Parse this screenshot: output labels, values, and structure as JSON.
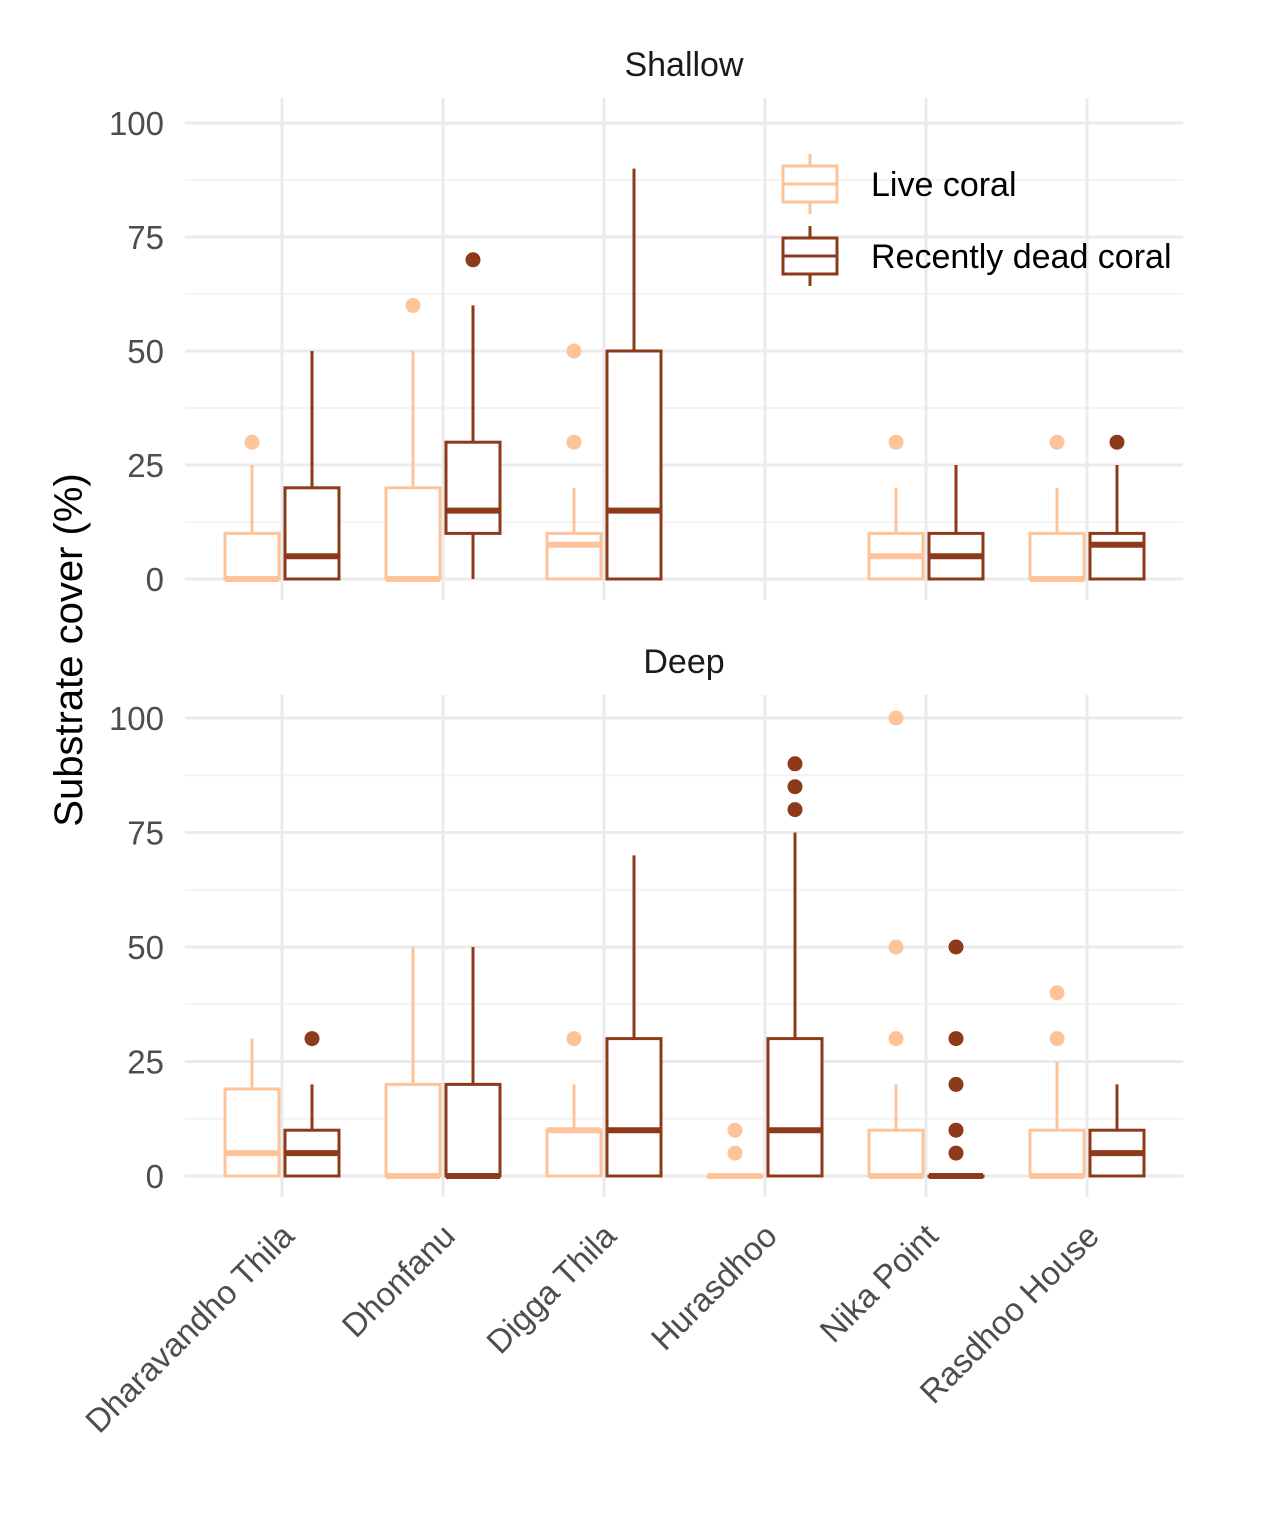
{
  "chart_data": {
    "type": "boxplot",
    "ylabel": "Substrate cover (%)",
    "xlabel": "",
    "ylim": [
      0,
      100
    ],
    "yticks": [
      0,
      25,
      50,
      75,
      100
    ],
    "categories": [
      "Dharavandho Thila",
      "Dhonfanu",
      "Digga Thila",
      "Hurasdhoo",
      "Nika Point",
      "Rasdhoo House"
    ],
    "legend": {
      "position": "top-right",
      "entries": [
        {
          "name": "Live coral",
          "color": "#fdc49a"
        },
        {
          "name": "Recently dead coral",
          "color": "#8c3a1a"
        }
      ]
    },
    "facets": [
      {
        "title": "Shallow",
        "series": [
          {
            "name": "Live coral",
            "boxes": [
              {
                "site": "Dharavandho Thila",
                "min": 0,
                "q1": 0,
                "median": 0,
                "q3": 10,
                "max": 25,
                "outliers": [
                  30
                ]
              },
              {
                "site": "Dhonfanu",
                "min": 0,
                "q1": 0,
                "median": 0,
                "q3": 20,
                "max": 50,
                "outliers": [
                  60
                ]
              },
              {
                "site": "Digga Thila",
                "min": 0,
                "q1": 0,
                "median": 7.5,
                "q3": 10,
                "max": 20,
                "outliers": [
                  30,
                  50
                ]
              },
              {
                "site": "Hurasdhoo",
                "missing": true
              },
              {
                "site": "Nika Point",
                "min": 0,
                "q1": 0,
                "median": 5,
                "q3": 10,
                "max": 20,
                "outliers": [
                  30
                ]
              },
              {
                "site": "Rasdhoo House",
                "min": 0,
                "q1": 0,
                "median": 0,
                "q3": 10,
                "max": 20,
                "outliers": [
                  30
                ]
              }
            ]
          },
          {
            "name": "Recently dead coral",
            "boxes": [
              {
                "site": "Dharavandho Thila",
                "min": 0,
                "q1": 0,
                "median": 5,
                "q3": 20,
                "max": 50,
                "outliers": []
              },
              {
                "site": "Dhonfanu",
                "min": 0,
                "q1": 10,
                "median": 15,
                "q3": 30,
                "max": 60,
                "outliers": [
                  70
                ]
              },
              {
                "site": "Digga Thila",
                "min": 0,
                "q1": 0,
                "median": 15,
                "q3": 50,
                "max": 90,
                "outliers": []
              },
              {
                "site": "Hurasdhoo",
                "missing": true
              },
              {
                "site": "Nika Point",
                "min": 0,
                "q1": 0,
                "median": 5,
                "q3": 10,
                "max": 25,
                "outliers": []
              },
              {
                "site": "Rasdhoo House",
                "min": 0,
                "q1": 0,
                "median": 7.5,
                "q3": 10,
                "max": 25,
                "outliers": [
                  30
                ]
              }
            ]
          }
        ]
      },
      {
        "title": "Deep",
        "series": [
          {
            "name": "Live coral",
            "boxes": [
              {
                "site": "Dharavandho Thila",
                "min": 0,
                "q1": 0,
                "median": 5,
                "q3": 19,
                "max": 30,
                "outliers": []
              },
              {
                "site": "Dhonfanu",
                "min": 0,
                "q1": 0,
                "median": 0,
                "q3": 20,
                "max": 50,
                "outliers": []
              },
              {
                "site": "Digga Thila",
                "min": 0,
                "q1": 0,
                "median": 10,
                "q3": 10,
                "max": 20,
                "outliers": [
                  30
                ]
              },
              {
                "site": "Hurasdhoo",
                "min": 0,
                "q1": 0,
                "median": 0,
                "q3": 0,
                "max": 0,
                "outliers": [
                  5,
                  10
                ]
              },
              {
                "site": "Nika Point",
                "min": 0,
                "q1": 0,
                "median": 0,
                "q3": 10,
                "max": 20,
                "outliers": [
                  30,
                  50,
                  100
                ]
              },
              {
                "site": "Rasdhoo House",
                "min": 0,
                "q1": 0,
                "median": 0,
                "q3": 10,
                "max": 25,
                "outliers": [
                  30,
                  40
                ]
              }
            ]
          },
          {
            "name": "Recently dead coral",
            "boxes": [
              {
                "site": "Dharavandho Thila",
                "min": 0,
                "q1": 0,
                "median": 5,
                "q3": 10,
                "max": 20,
                "outliers": [
                  30
                ]
              },
              {
                "site": "Dhonfanu",
                "min": 0,
                "q1": 0,
                "median": 0,
                "q3": 20,
                "max": 50,
                "outliers": []
              },
              {
                "site": "Digga Thila",
                "min": 0,
                "q1": 0,
                "median": 10,
                "q3": 30,
                "max": 70,
                "outliers": []
              },
              {
                "site": "Hurasdhoo",
                "min": 0,
                "q1": 0,
                "median": 10,
                "q3": 30,
                "max": 75,
                "outliers": [
                  80,
                  85,
                  90
                ]
              },
              {
                "site": "Nika Point",
                "min": 0,
                "q1": 0,
                "median": 0,
                "q3": 0,
                "max": 0,
                "outliers": [
                  5,
                  10,
                  20,
                  30,
                  50
                ]
              },
              {
                "site": "Rasdhoo House",
                "min": 0,
                "q1": 0,
                "median": 5,
                "q3": 10,
                "max": 20,
                "outliers": []
              }
            ]
          }
        ]
      }
    ]
  }
}
